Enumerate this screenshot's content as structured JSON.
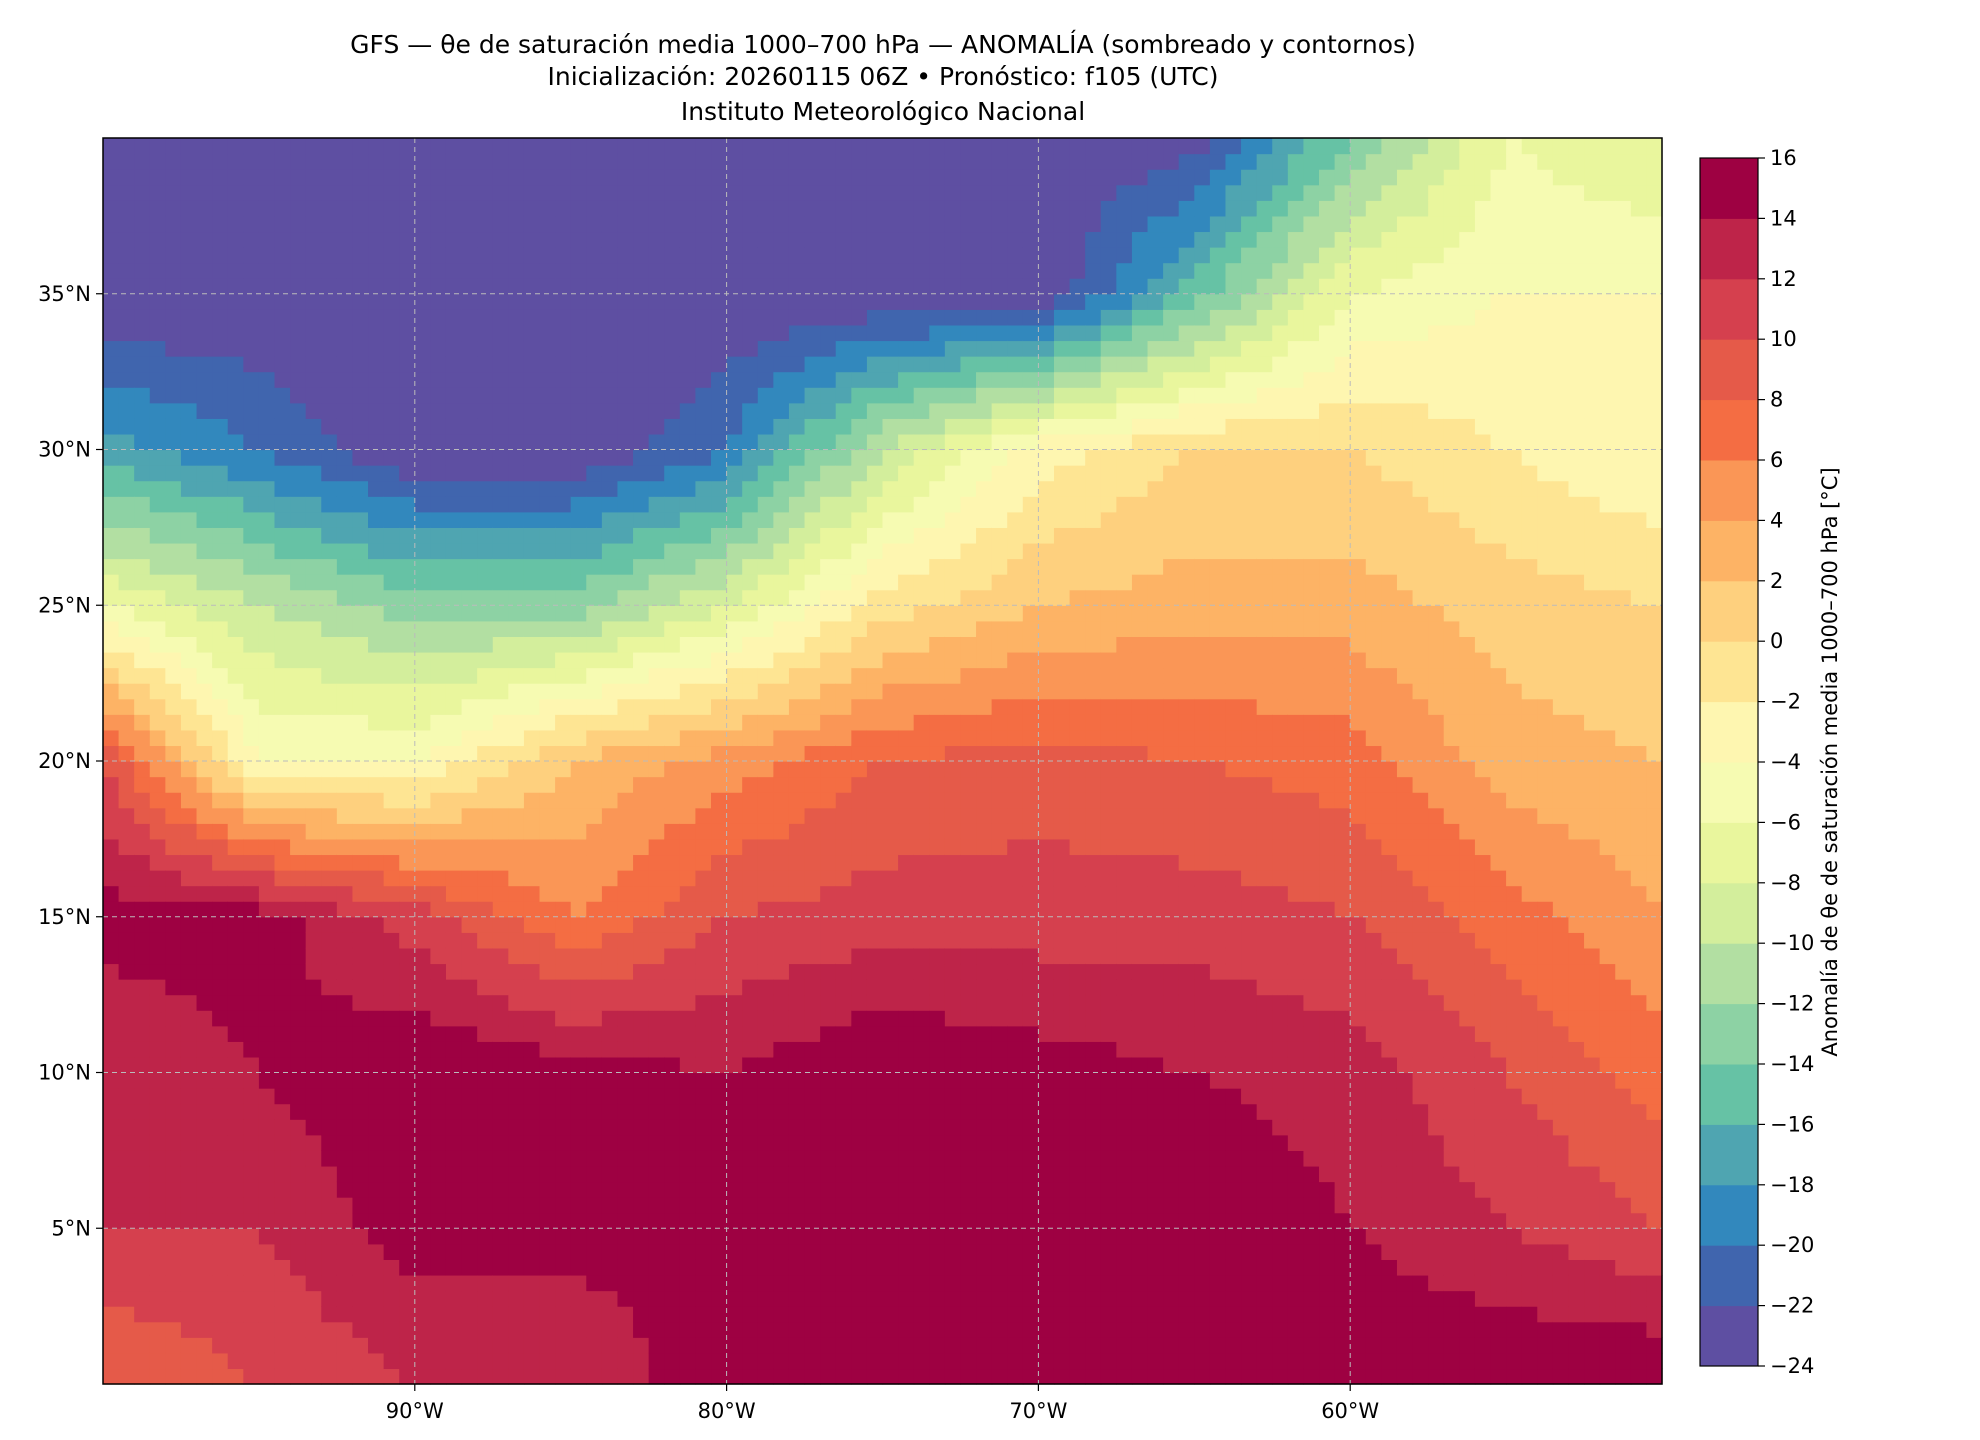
{
  "header": {
    "title": "GFS — θe de saturación media 1000–700 hPa — ANOMALÍA (sombreado y contornos)",
    "subtitle": "Inicialización: 20260115 06Z   •   Pronóstico: f105 (UTC)",
    "institution": "Instituto Meteorológico Nacional"
  },
  "chart_data": {
    "type": "heatmap",
    "title": "GFS — θe de saturación media 1000–700 hPa — ANOMALÍA (sombreado y contornos)",
    "xlim": [
      -100,
      -50
    ],
    "ylim": [
      0,
      40
    ],
    "grid": true,
    "x_ticks": [
      {
        "value": -90,
        "label": "90°W"
      },
      {
        "value": -80,
        "label": "80°W"
      },
      {
        "value": -70,
        "label": "70°W"
      },
      {
        "value": -60,
        "label": "60°W"
      }
    ],
    "y_ticks": [
      {
        "value": 35,
        "label": "35°N"
      },
      {
        "value": 30,
        "label": "30°N"
      },
      {
        "value": 25,
        "label": "25°N"
      },
      {
        "value": 20,
        "label": "20°N"
      },
      {
        "value": 15,
        "label": "15°N"
      },
      {
        "value": 10,
        "label": "10°N"
      },
      {
        "value": 5,
        "label": "5°N"
      }
    ],
    "grid_lon": [
      -100,
      -95,
      -90,
      -85,
      -80,
      -75,
      -70,
      -65,
      -60,
      -55,
      -50
    ],
    "grid_lat": [
      40,
      35,
      30,
      25,
      20,
      15,
      10,
      5,
      0
    ],
    "values": [
      [
        -24,
        -24,
        -24,
        -24,
        -24,
        -24,
        -24,
        -23,
        -14,
        -6,
        -8
      ],
      [
        -24,
        -24,
        -24,
        -24,
        -24,
        -24,
        -24,
        -15,
        -6,
        -4,
        -4
      ],
      [
        -17,
        -20,
        -24,
        -24,
        -20,
        -10,
        -3,
        0,
        0,
        -2,
        -4
      ],
      [
        -6,
        -10,
        -13,
        -13,
        -8,
        -1,
        2,
        3,
        3,
        1,
        0
      ],
      [
        10,
        -4,
        -4,
        2,
        5,
        8,
        9,
        8,
        7,
        3,
        2
      ],
      [
        15,
        15,
        11,
        6,
        10,
        11,
        11,
        11,
        10,
        7,
        4
      ],
      [
        12,
        14,
        16,
        15,
        14,
        16,
        15,
        14,
        13,
        10,
        7
      ],
      [
        12,
        12,
        15,
        15,
        14,
        16,
        16,
        16,
        14,
        12,
        10
      ],
      [
        8,
        10,
        12,
        12,
        16,
        16,
        16,
        16,
        16,
        16,
        16
      ]
    ],
    "colorbar": {
      "label": "Anomalía de θe de saturación media 1000–700 hPa [°C]",
      "levels": [
        -24,
        -22,
        -20,
        -18,
        -16,
        -14,
        -12,
        -10,
        -8,
        -6,
        -4,
        -2,
        0,
        2,
        4,
        6,
        8,
        10,
        12,
        14,
        16
      ],
      "tick_labels": [
        "−24",
        "−22",
        "−20",
        "−18",
        "−16",
        "−14",
        "−12",
        "−10",
        "−8",
        "−6",
        "−4",
        "−2",
        "0",
        "2",
        "4",
        "6",
        "8",
        "10",
        "12",
        "14",
        "16"
      ],
      "colors": [
        "#5e4fa2",
        "#4065ae",
        "#3288bd",
        "#4fa5b1",
        "#66c2a5",
        "#8dd2a4",
        "#b2dfa2",
        "#d3ee9c",
        "#e9f69d",
        "#f6fbb2",
        "#fef6b0",
        "#fee593",
        "#fed07e",
        "#fdb365",
        "#fa9656",
        "#f46d43",
        "#e55a49",
        "#d5404e",
        "#be2449",
        "#9e0142"
      ]
    }
  }
}
